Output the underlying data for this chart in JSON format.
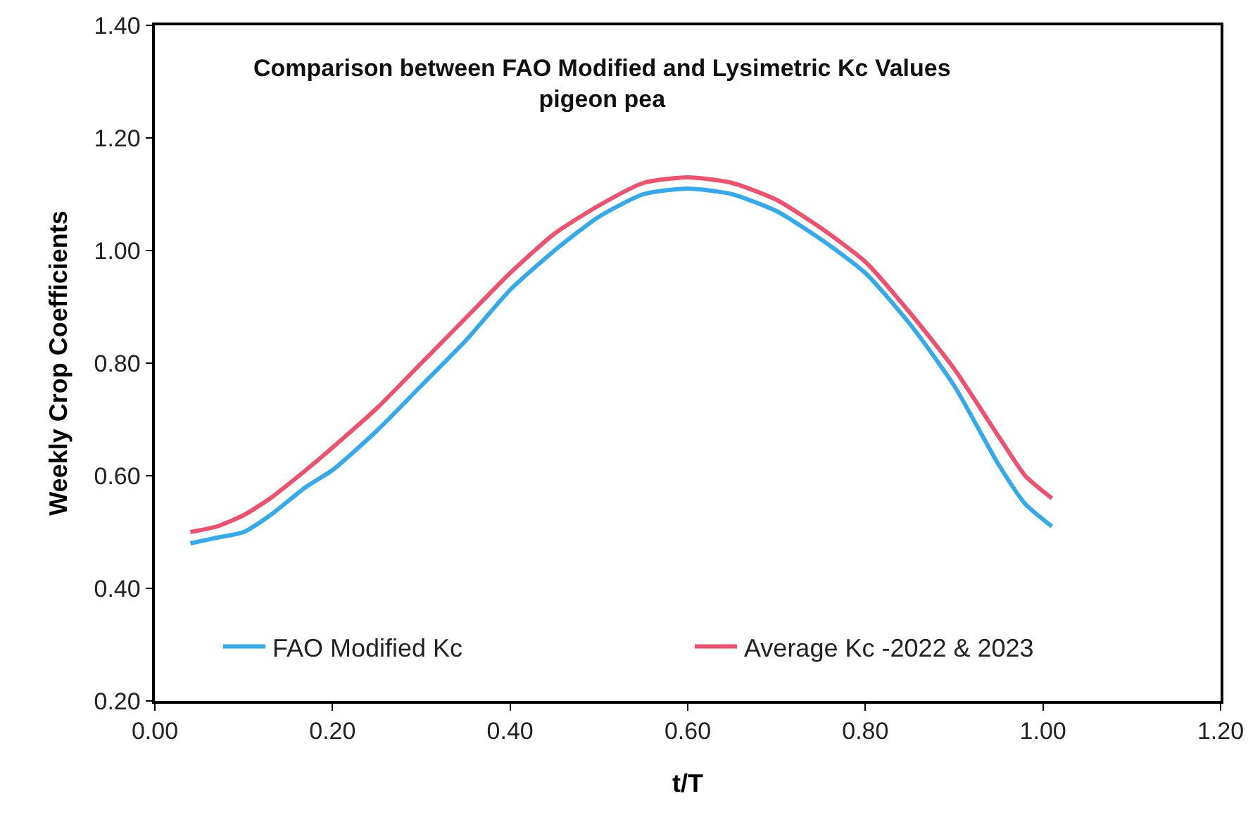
{
  "chart_data": {
    "type": "line",
    "title": "Comparison between FAO Modified and Lysimetric Kc Values\npigeon pea",
    "xlabel": "t/T",
    "ylabel": "Weekly Crop Coefficients",
    "x": [
      0.04,
      0.07,
      0.1,
      0.13,
      0.17,
      0.2,
      0.25,
      0.3,
      0.35,
      0.4,
      0.45,
      0.5,
      0.55,
      0.6,
      0.65,
      0.7,
      0.75,
      0.8,
      0.85,
      0.9,
      0.95,
      0.98,
      1.01
    ],
    "series": [
      {
        "name": "FAO Modified Kc",
        "color": "#33aaee",
        "values": [
          0.48,
          0.49,
          0.5,
          0.53,
          0.58,
          0.61,
          0.68,
          0.76,
          0.84,
          0.93,
          1.0,
          1.06,
          1.1,
          1.11,
          1.1,
          1.07,
          1.02,
          0.96,
          0.87,
          0.76,
          0.62,
          0.55,
          0.51
        ]
      },
      {
        "name": "Average Kc -2022 & 2023",
        "color": "#f0506e",
        "values": [
          0.5,
          0.51,
          0.53,
          0.56,
          0.61,
          0.65,
          0.72,
          0.8,
          0.88,
          0.96,
          1.03,
          1.08,
          1.12,
          1.13,
          1.12,
          1.09,
          1.04,
          0.98,
          0.89,
          0.79,
          0.67,
          0.6,
          0.56
        ]
      }
    ],
    "xlim": [
      0,
      1.2
    ],
    "xticks": [
      {
        "value": 0,
        "label": "0.00"
      },
      {
        "value": 0.2,
        "label": "0.20"
      },
      {
        "value": 0.4,
        "label": "0.40"
      },
      {
        "value": 0.6,
        "label": "0.60"
      },
      {
        "value": 0.8,
        "label": "0.80"
      },
      {
        "value": 1.0,
        "label": "1.00"
      },
      {
        "value": 1.2,
        "label": "1.20"
      }
    ],
    "ylim": [
      0.2,
      1.4
    ],
    "yticks": [
      {
        "value": 0.2,
        "label": "0.20"
      },
      {
        "value": 0.4,
        "label": "0.40"
      },
      {
        "value": 0.6,
        "label": "0.60"
      },
      {
        "value": 0.8,
        "label": "0.80"
      },
      {
        "value": 1.0,
        "label": "1.00"
      },
      {
        "value": 1.2,
        "label": "1.20"
      },
      {
        "value": 1.4,
        "label": "1.40"
      }
    ],
    "grid": false,
    "legend": "bottom",
    "marker": "none",
    "line_style": "solid"
  }
}
